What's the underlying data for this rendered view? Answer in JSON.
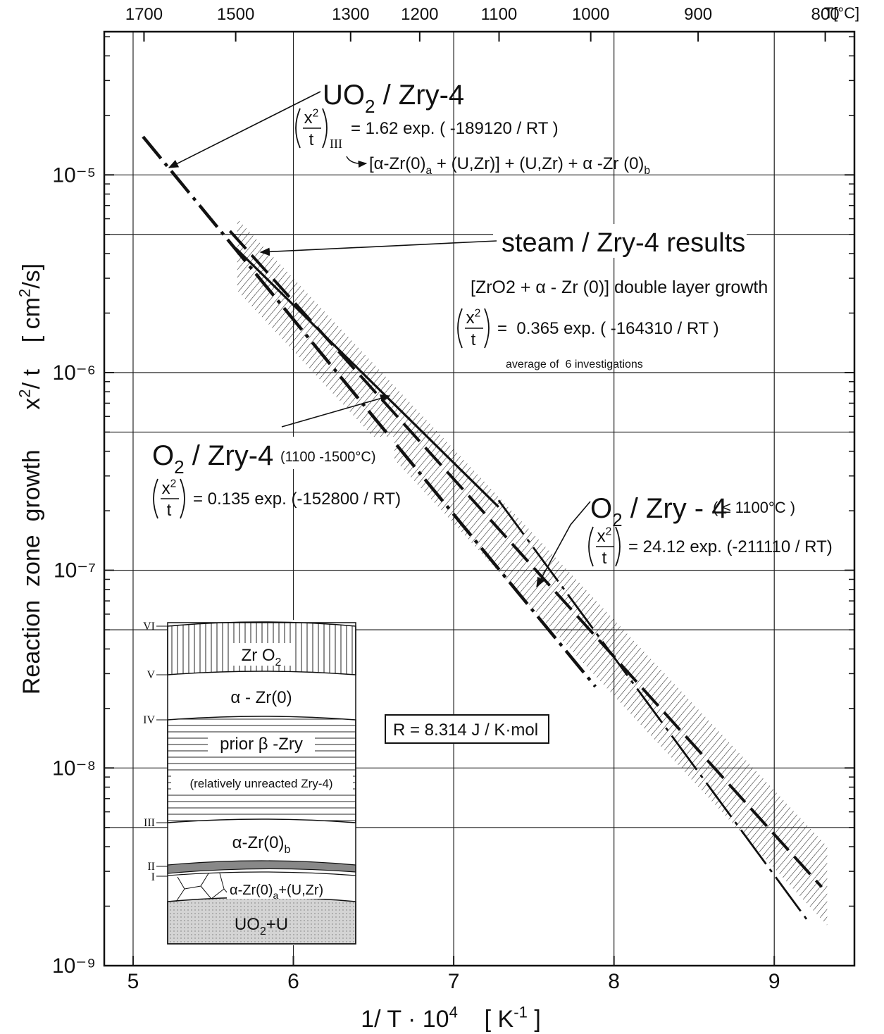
{
  "chart_data": {
    "type": "line",
    "y_log": true,
    "grid": true,
    "xlim": [
      4.82,
      9.5
    ],
    "ylim": [
      1e-09,
      5.3e-05
    ],
    "xticks": [
      5,
      6,
      7,
      8,
      9
    ],
    "yticks": [
      {
        "value": 1e-09,
        "label": "10⁻⁹"
      },
      {
        "value": 1e-08,
        "label": "10⁻⁸"
      },
      {
        "value": 1e-07,
        "label": "10⁻⁷"
      },
      {
        "value": 1e-06,
        "label": "10⁻⁶"
      },
      {
        "value": 1e-05,
        "label": "10⁻⁵"
      }
    ],
    "y_minor_ticks": [
      2e-09,
      3e-09,
      4e-09,
      5e-09,
      6e-09,
      7e-09,
      8e-09,
      9e-09,
      2e-08,
      3e-08,
      4e-08,
      5e-08,
      6e-08,
      7e-08,
      8e-08,
      9e-08,
      2e-07,
      3e-07,
      4e-07,
      5e-07,
      6e-07,
      7e-07,
      8e-07,
      9e-07,
      2e-06,
      3e-06,
      4e-06,
      5e-06,
      6e-06,
      7e-06,
      8e-06,
      9e-06,
      2e-05,
      3e-05,
      4e-05,
      5e-05
    ],
    "y_grid_extra": [
      5e-09,
      5e-08,
      5e-07,
      5e-06
    ],
    "x2ticks": [
      {
        "value": 5.068,
        "label": "1700"
      },
      {
        "value": 5.64,
        "label": "1500"
      },
      {
        "value": 6.357,
        "label": "1300"
      },
      {
        "value": 6.788,
        "label": "1200"
      },
      {
        "value": 7.283,
        "label": "1100"
      },
      {
        "value": 7.855,
        "label": "1000"
      },
      {
        "value": 8.525,
        "label": "900"
      },
      {
        "value": 9.318,
        "label": "800"
      }
    ],
    "x2_label": "T[°C]",
    "x_label": [
      "1/ T · 10",
      "4",
      "    [ K",
      "-1",
      " ]"
    ],
    "y_label": [
      "Reaction  zone  growth      x",
      "2",
      "/ t    [ cm",
      "2",
      "/s]"
    ],
    "color": "#111111",
    "series": [
      {
        "x": [
          5.062,
          7.884
        ],
        "values": [
          1.56e-05,
          2.58e-08
        ],
        "style": "dash-dot"
      },
      {
        "x": [
          5.604,
          9.296
        ],
        "values": [
          5.2e-06,
          2.5e-09
        ],
        "style": "dashed"
      },
      {
        "x": [
          5.64,
          7.28
        ],
        "values": [
          4.26e-06,
          2.09e-07
        ],
        "style": "solid"
      },
      {
        "x": [
          7.28,
          9.22
        ],
        "values": [
          2.26e-07,
          1.64e-09
        ],
        "style": "long-dash-dot"
      }
    ],
    "band": {
      "x": [
        5.65,
        9.33
      ],
      "upper": [
        6e-06,
        4e-09
      ],
      "lower": [
        2.6e-06,
        1.6e-09
      ]
    },
    "annotations": {
      "uo2_title": [
        "UO",
        "2",
        " / Zry-4"
      ],
      "uo2_formula": {
        "numerator": [
          "x",
          "2"
        ],
        "denominator": "t",
        "subscript": "III",
        "rhs": "= 1.62 exp. ( -189120 / RT )"
      },
      "uo2_phases": [
        "[α-Zr(0)",
        "a",
        " + (U,Zr)] + (U,Zr) + α -Zr (0)",
        "b"
      ],
      "steam_title": "steam / Zry-4 results",
      "steam_phases": "[ZrO2 + α - Zr (0)] double layer growth",
      "steam_formula": {
        "numerator": [
          "x",
          "2"
        ],
        "denominator": "t",
        "rhs": "=  0.365 exp. ( -164310 / RT )"
      },
      "steam_note": "average of  6 investigations",
      "o2_high_title": [
        "O",
        "2",
        " / Zry-4"
      ],
      "o2_high_range": "(1100 -1500°C)",
      "o2_high_formula": {
        "numerator": [
          "x",
          "2"
        ],
        "denominator": "t",
        "rhs": "= 0.135 exp. (-152800 / RT)"
      },
      "o2_low_title": [
        "O",
        "2",
        " / Zry - 4"
      ],
      "o2_low_range": "( ≤ 1100°C )",
      "o2_low_formula": {
        "numerator": [
          "x",
          "2"
        ],
        "denominator": "t",
        "rhs": "= 24.12 exp. (-211110 / RT)"
      },
      "gas_constant": "R = 8.314 J / K·mol"
    },
    "inset": {
      "boundaries": [
        "VI",
        "V",
        "IV",
        "III",
        "II",
        "I"
      ],
      "zro2": [
        "Zr O",
        "2"
      ],
      "alpha": "α - Zr(0)",
      "prior": "prior β -Zry",
      "unreacted": "(relatively unreacted Zry-4)",
      "alpha_b": [
        "α-Zr(0)",
        "b"
      ],
      "alpha_a": [
        "α-Zr(0)",
        "a",
        "+(U,Zr)"
      ],
      "fuel": [
        "UO",
        "2",
        "+U"
      ]
    }
  }
}
